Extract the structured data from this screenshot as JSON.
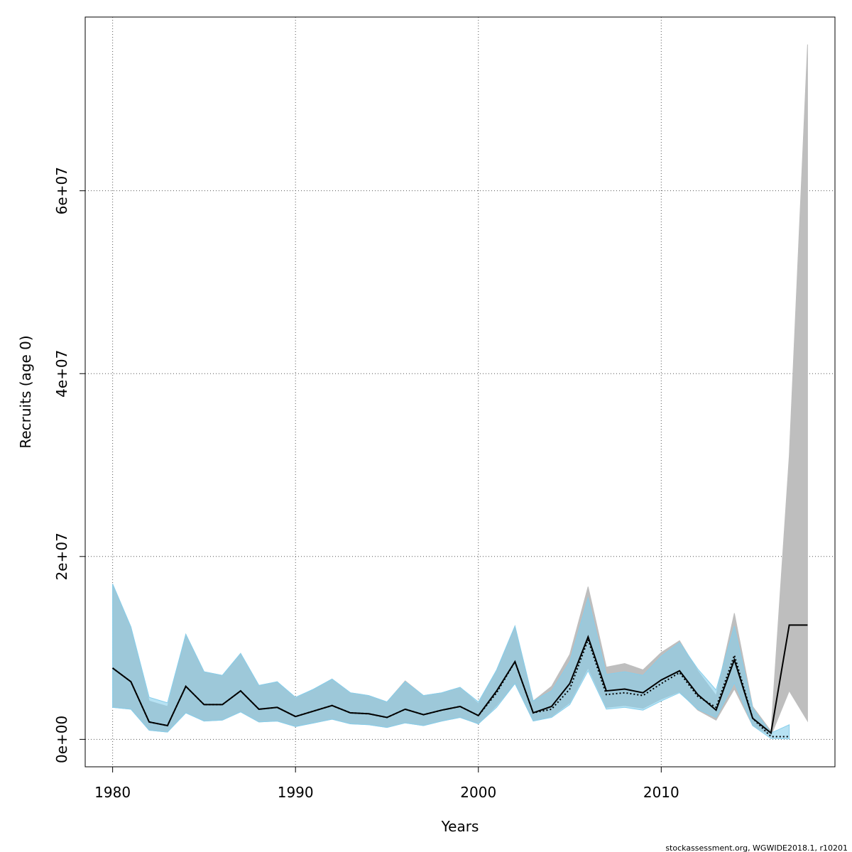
{
  "chart_data": {
    "type": "line",
    "title": "",
    "xlabel": "Years",
    "ylabel": "Recruits (age 0)",
    "xlim": [
      1978.5,
      2019.5
    ],
    "ylim": [
      -3000000,
      79000000
    ],
    "grid": true,
    "x_ticks": [
      {
        "value": 1980,
        "label": "1980"
      },
      {
        "value": 1990,
        "label": "1990"
      },
      {
        "value": 2000,
        "label": "2000"
      },
      {
        "value": 2010,
        "label": "2010"
      }
    ],
    "y_ticks": [
      {
        "value": 0,
        "label": "0e+00"
      },
      {
        "value": 20000000,
        "label": "2e+07"
      },
      {
        "value": 40000000,
        "label": "4e+07"
      },
      {
        "value": 60000000,
        "label": "6e+07"
      }
    ],
    "series": [
      {
        "color": "#bebebe",
        "line_color": "#000000",
        "line_style": "solid",
        "x": [
          1980,
          1981,
          1982,
          1983,
          1984,
          1985,
          1986,
          1987,
          1988,
          1989,
          1990,
          1991,
          1992,
          1993,
          1994,
          1995,
          1996,
          1997,
          1998,
          1999,
          2000,
          2001,
          2002,
          2003,
          2004,
          2005,
          2006,
          2007,
          2008,
          2009,
          2010,
          2011,
          2012,
          2013,
          2014,
          2015,
          2016,
          2017,
          2018
        ],
        "estimate": [
          7800000,
          6300000,
          1900000,
          1500000,
          5800000,
          3800000,
          3800000,
          5300000,
          3300000,
          3500000,
          2500000,
          3100000,
          3700000,
          2900000,
          2800000,
          2400000,
          3300000,
          2700000,
          3200000,
          3600000,
          2600000,
          5300000,
          8500000,
          2900000,
          3600000,
          6100000,
          11200000,
          5300000,
          5500000,
          5100000,
          6500000,
          7500000,
          4900000,
          3200000,
          8700000,
          2300000,
          700000,
          12500000,
          12500000
        ],
        "lower": [
          3500000,
          3300000,
          1000000,
          800000,
          2900000,
          2000000,
          2100000,
          3000000,
          1900000,
          2000000,
          1400000,
          1800000,
          2200000,
          1700000,
          1600000,
          1300000,
          1800000,
          1500000,
          2000000,
          2400000,
          1700000,
          3700000,
          6100000,
          2000000,
          2500000,
          4000000,
          7800000,
          3500000,
          3700000,
          3400000,
          4400000,
          5200000,
          3200000,
          2100000,
          5500000,
          1500000,
          400000,
          5300000,
          2000000
        ],
        "upper": [
          17000000,
          12300000,
          4200000,
          3600000,
          11500000,
          7400000,
          7000000,
          9400000,
          5900000,
          6300000,
          4500000,
          5500000,
          6600000,
          5100000,
          4800000,
          4100000,
          6400000,
          4800000,
          5100000,
          5700000,
          3900000,
          7600000,
          12400000,
          4200000,
          5800000,
          9300000,
          16700000,
          7900000,
          8300000,
          7600000,
          9500000,
          10800000,
          7500000,
          4800000,
          13800000,
          3600000,
          900000,
          31000000,
          76000000
        ]
      },
      {
        "color": "#87ceeb",
        "line_color": "#000000",
        "line_style": "dotted",
        "x": [
          1980,
          1981,
          1982,
          1983,
          1984,
          1985,
          1986,
          1987,
          1988,
          1989,
          1990,
          1991,
          1992,
          1993,
          1994,
          1995,
          1996,
          1997,
          1998,
          1999,
          2000,
          2001,
          2002,
          2003,
          2004,
          2005,
          2006,
          2007,
          2008,
          2009,
          2010,
          2011,
          2012,
          2013,
          2014,
          2015,
          2016,
          2017
        ],
        "estimate": [
          7800000,
          6300000,
          1900000,
          1500000,
          5800000,
          3800000,
          3800000,
          5300000,
          3300000,
          3500000,
          2500000,
          3100000,
          3700000,
          2900000,
          2800000,
          2400000,
          3300000,
          2700000,
          3200000,
          3600000,
          2600000,
          5100000,
          8500000,
          2900000,
          3300000,
          5500000,
          10900000,
          4900000,
          5100000,
          4800000,
          6100000,
          7300000,
          4700000,
          3500000,
          9200000,
          2300000,
          300000,
          300000
        ],
        "lower": [
          3500000,
          3300000,
          1000000,
          800000,
          2900000,
          2000000,
          2100000,
          3000000,
          1900000,
          2000000,
          1400000,
          1800000,
          2200000,
          1700000,
          1600000,
          1300000,
          1800000,
          1500000,
          2000000,
          2400000,
          1700000,
          3500000,
          6100000,
          2000000,
          2400000,
          3800000,
          7500000,
          3300000,
          3500000,
          3200000,
          4200000,
          5100000,
          3300000,
          2400000,
          6200000,
          1500000,
          100000,
          50000
        ],
        "upper": [
          17000000,
          12300000,
          4600000,
          4000000,
          11500000,
          7400000,
          7000000,
          9400000,
          5900000,
          6300000,
          4600000,
          5500000,
          6600000,
          5100000,
          4800000,
          4100000,
          6300000,
          4800000,
          5100000,
          5700000,
          4100000,
          7600000,
          12400000,
          4200000,
          5300000,
          8500000,
          15500000,
          7100000,
          7400000,
          7000000,
          9100000,
          10600000,
          7700000,
          5400000,
          12400000,
          3400000,
          700000,
          1600000
        ]
      }
    ]
  },
  "footer": {
    "text": "stockassessment.org, WGWIDE2018.1, r10201"
  }
}
